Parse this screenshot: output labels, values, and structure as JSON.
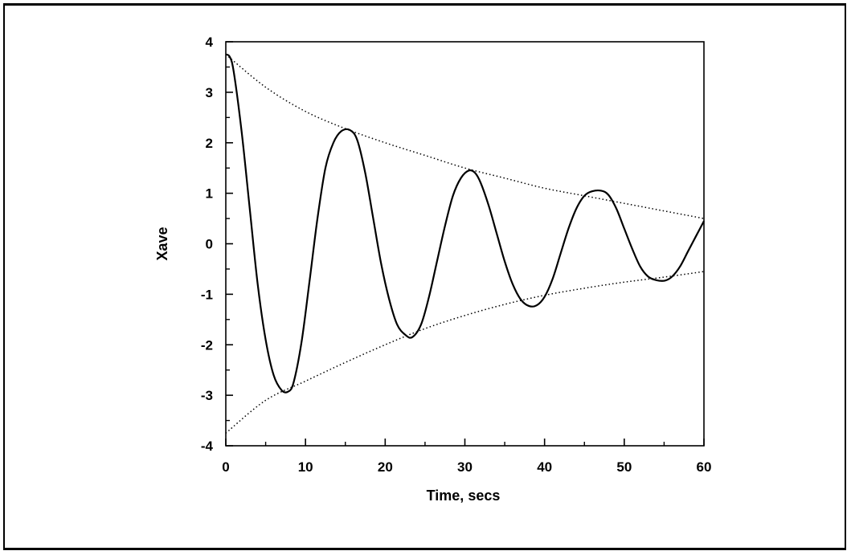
{
  "chart_data": {
    "type": "line",
    "title": "",
    "xlabel": "Time, secs",
    "ylabel": "Xave",
    "xlim": [
      0,
      60
    ],
    "ylim": [
      -4,
      4
    ],
    "x_ticks": [
      0,
      10,
      20,
      30,
      40,
      50,
      60
    ],
    "x_tick_labels": [
      "0",
      "10",
      "20",
      "30",
      "40",
      "50",
      "60"
    ],
    "y_ticks": [
      4,
      3,
      2,
      1,
      0,
      -1,
      -2,
      -3,
      -4
    ],
    "y_tick_labels": [
      "4",
      "3",
      "2",
      "1",
      "0",
      "-1",
      "-2",
      "-3",
      "-4"
    ],
    "grid": false,
    "legend": "none",
    "series": [
      {
        "style": "solid",
        "color": "#000000",
        "x": [
          0,
          0.5,
          1,
          2,
          3,
          4,
          5,
          6,
          7,
          7.8,
          8.5,
          9.5,
          10.5,
          11.5,
          12.5,
          13.5,
          14.5,
          15.6,
          16.5,
          17.5,
          18.5,
          19.5,
          20.5,
          21.5,
          22.5,
          23.4,
          24.5,
          25.5,
          26.5,
          27.5,
          28.5,
          29.5,
          30.5,
          31.3,
          32,
          33,
          34,
          35,
          36,
          37,
          38,
          39,
          40,
          41,
          42,
          43,
          44,
          45,
          46,
          47.1,
          48,
          49,
          50,
          51,
          52,
          53,
          54,
          55.1,
          56,
          57,
          58,
          59,
          60
        ],
        "y": [
          3.75,
          3.7,
          3.4,
          2.2,
          0.7,
          -0.8,
          -1.9,
          -2.6,
          -2.9,
          -2.93,
          -2.75,
          -1.95,
          -0.75,
          0.5,
          1.5,
          2.0,
          2.23,
          2.25,
          2.05,
          1.4,
          0.5,
          -0.4,
          -1.1,
          -1.6,
          -1.8,
          -1.85,
          -1.6,
          -1.05,
          -0.35,
          0.35,
          0.95,
          1.3,
          1.45,
          1.4,
          1.2,
          0.75,
          0.2,
          -0.35,
          -0.8,
          -1.1,
          -1.23,
          -1.22,
          -1.05,
          -0.7,
          -0.2,
          0.3,
          0.7,
          0.95,
          1.04,
          1.05,
          0.97,
          0.7,
          0.3,
          -0.1,
          -0.45,
          -0.65,
          -0.72,
          -0.73,
          -0.65,
          -0.45,
          -0.15,
          0.15,
          0.45
        ]
      },
      {
        "style": "dotted",
        "color": "#000000",
        "x": [
          0,
          5,
          10,
          15,
          20,
          25,
          30,
          35,
          40,
          45,
          50,
          55,
          60
        ],
        "y": [
          3.75,
          3.1,
          2.62,
          2.28,
          2.0,
          1.75,
          1.5,
          1.3,
          1.1,
          0.95,
          0.8,
          0.65,
          0.5
        ]
      },
      {
        "style": "dotted",
        "color": "#000000",
        "x": [
          0,
          5,
          10,
          15,
          20,
          25,
          30,
          35,
          40,
          45,
          50,
          55,
          60
        ],
        "y": [
          -3.75,
          -3.1,
          -2.72,
          -2.35,
          -2.0,
          -1.68,
          -1.42,
          -1.2,
          -1.02,
          -0.88,
          -0.76,
          -0.66,
          -0.55
        ]
      }
    ]
  }
}
